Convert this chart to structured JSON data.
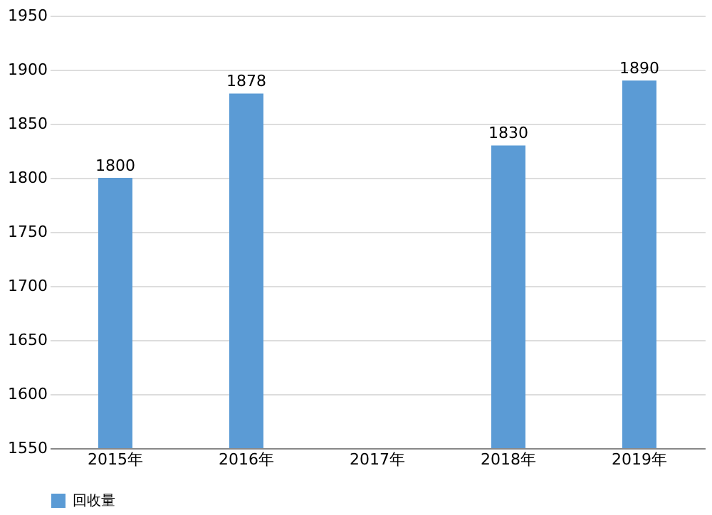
{
  "chart_data": {
    "type": "bar",
    "categories": [
      "2015年",
      "2016年",
      "2017年",
      "2018年",
      "2019年"
    ],
    "series": [
      {
        "name": "回收量",
        "color": "#5b9bd5",
        "values": [
          1800,
          1878,
          null,
          1830,
          1890
        ]
      }
    ],
    "ylim": [
      1550,
      1950
    ],
    "yticks": [
      1550,
      1600,
      1650,
      1700,
      1750,
      1800,
      1850,
      1900,
      1950
    ],
    "grid": "y",
    "legend": "bottom",
    "data_labels": true
  }
}
